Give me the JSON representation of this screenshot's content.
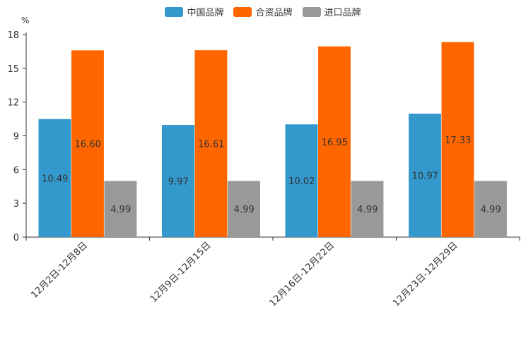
{
  "chart_data": {
    "type": "bar",
    "title": "",
    "xlabel": "",
    "ylabel": "%",
    "ylim": [
      0,
      18
    ],
    "yticks": [
      0,
      3,
      6,
      9,
      12,
      15,
      18
    ],
    "categories": [
      "12月2日-12月8日",
      "12月9日-12月15日",
      "12月16日-12月22日",
      "12月23日-12月29日"
    ],
    "series": [
      {
        "name": "中国品牌",
        "color": "#3399cc",
        "values": [
          10.49,
          9.97,
          10.02,
          10.97
        ],
        "labels": [
          "10.49",
          "9.97",
          "10.02",
          "10.97"
        ]
      },
      {
        "name": "合资品牌",
        "color": "#ff6600",
        "values": [
          16.6,
          16.61,
          16.95,
          17.33
        ],
        "labels": [
          "16.60",
          "16.61",
          "16.95",
          "17.33"
        ]
      },
      {
        "name": "进口品牌",
        "color": "#999999",
        "values": [
          4.99,
          4.99,
          4.99,
          4.99
        ],
        "labels": [
          "4.99",
          "4.99",
          "4.99",
          "4.99"
        ]
      }
    ],
    "legend_position": "top-center",
    "grid": false
  }
}
